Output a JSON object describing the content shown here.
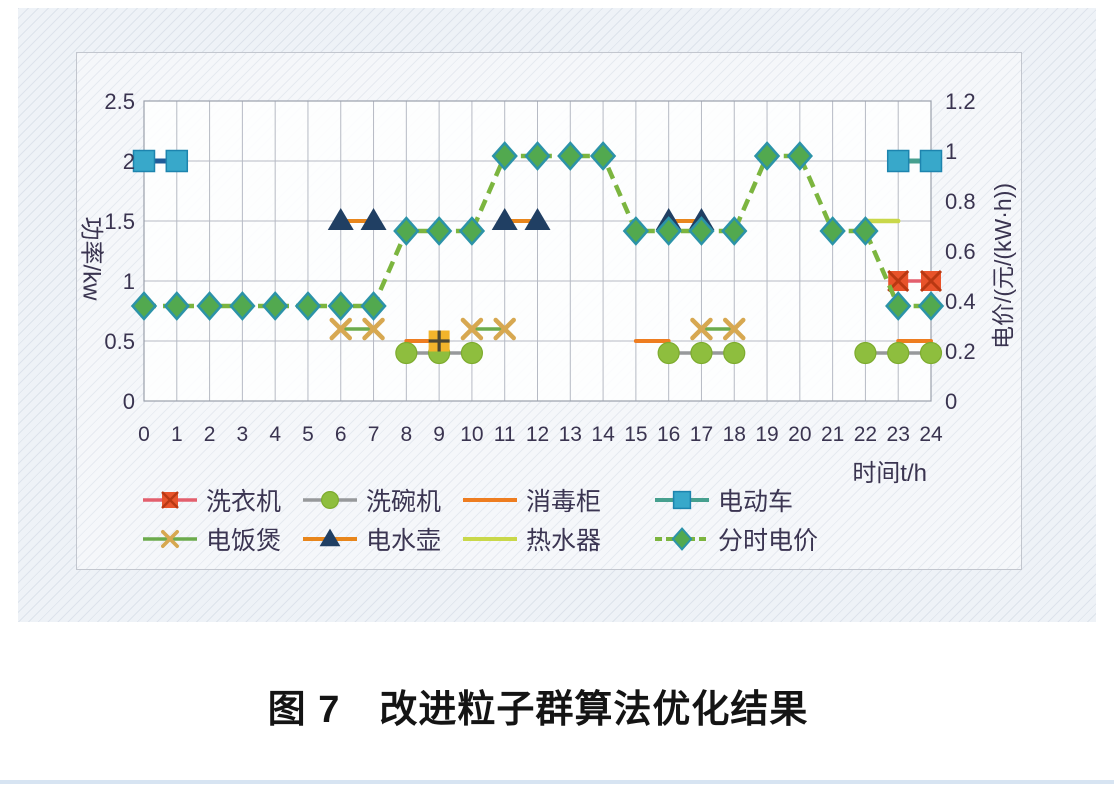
{
  "page": {
    "caption": "图 7　改进粒子群算法优化结果"
  },
  "chart_data": {
    "type": "line",
    "x_axis": {
      "title": "时间t/h",
      "range": [
        0,
        24
      ],
      "ticks": [
        "0",
        "1",
        "2",
        "3",
        "4",
        "5",
        "6",
        "7",
        "8",
        "9",
        "10",
        "11",
        "12",
        "13",
        "14",
        "15",
        "16",
        "17",
        "18",
        "19",
        "20",
        "21",
        "22",
        "23",
        "24"
      ]
    },
    "y_left_axis": {
      "title": "功率/kw",
      "range": [
        0,
        2.5
      ],
      "ticks": [
        "0",
        "0.5",
        "1",
        "1.5",
        "2",
        "2.5"
      ],
      "gridlines": true
    },
    "y_right_axis": {
      "title": "电价/(元/(kW·h))",
      "range": [
        0,
        1.2
      ],
      "ticks": [
        "0",
        "0.2",
        "0.4",
        "0.6",
        "0.8",
        "1",
        "1.2"
      ]
    },
    "series": [
      {
        "id": "sterilizer",
        "label": "消毒柜",
        "axis": "left",
        "marker": "none",
        "line_color": "#ee7d20",
        "line_width": 4,
        "segments": [
          {
            "points": [
              [
                8,
                0.5
              ],
              [
                9,
                0.5
              ]
            ]
          },
          {
            "points": [
              [
                15,
                0.5
              ],
              [
                16,
                0.5
              ]
            ]
          },
          {
            "points": [
              [
                23,
                0.5
              ],
              [
                24,
                0.5
              ]
            ]
          }
        ]
      },
      {
        "id": "water_heater",
        "label": "热水器",
        "axis": "left",
        "marker": "none",
        "line_color": "#c9d84a",
        "line_width": 4.5,
        "segments": [
          {
            "points": [
              [
                22,
                1.5
              ],
              [
                23,
                1.5
              ]
            ]
          }
        ]
      },
      {
        "id": "dishwasher",
        "label": "洗碗机",
        "axis": "left",
        "marker": "circle",
        "marker_fill": "#8ebe3e",
        "marker_stroke": "#7dab2e",
        "line_color": "#97999b",
        "line_width": 3.5,
        "segments": [
          {
            "points": [
              [
                8,
                0.4
              ],
              [
                9,
                0.4
              ],
              [
                10,
                0.4
              ]
            ]
          },
          {
            "points": [
              [
                16,
                0.4
              ],
              [
                17,
                0.4
              ],
              [
                18,
                0.4
              ]
            ]
          },
          {
            "points": [
              [
                22,
                0.4
              ],
              [
                23,
                0.4
              ],
              [
                24,
                0.4
              ]
            ]
          }
        ]
      },
      {
        "id": "rice_cooker",
        "label": "电饭煲",
        "axis": "left",
        "marker": "x",
        "marker_fill": "#d7a851",
        "marker_stroke": "#d7a851",
        "line_color": "#6cab4c",
        "line_width": 3.5,
        "segments": [
          {
            "points": [
              [
                6,
                0.6
              ],
              [
                7,
                0.6
              ]
            ]
          },
          {
            "points": [
              [
                10,
                0.6
              ],
              [
                11,
                0.6
              ]
            ]
          },
          {
            "points": [
              [
                17,
                0.6
              ],
              [
                18,
                0.6
              ]
            ]
          }
        ]
      },
      {
        "id": "kettle",
        "label": "电水壶",
        "axis": "left",
        "marker": "triangle",
        "marker_fill": "#203f63",
        "marker_stroke": "#1a3352",
        "line_color": "#e8861c",
        "line_width": 4,
        "segments": [
          {
            "points": [
              [
                6,
                1.5
              ],
              [
                7,
                1.5
              ]
            ]
          },
          {
            "points": [
              [
                11,
                1.5
              ],
              [
                12,
                1.5
              ]
            ]
          },
          {
            "points": [
              [
                16,
                1.5
              ],
              [
                17,
                1.5
              ]
            ]
          }
        ]
      },
      {
        "id": "ev",
        "label": "电动车",
        "axis": "left",
        "marker": "square",
        "marker_fill": "#38a8ca",
        "marker_stroke": "#1d84ae",
        "line_color": "#46a08f",
        "line_width": 5,
        "segments": [
          {
            "points": [
              [
                0,
                2
              ],
              [
                1,
                2
              ]
            ],
            "line_color": "#1f5c99"
          },
          {
            "points": [
              [
                23,
                2
              ],
              [
                24,
                2
              ]
            ]
          }
        ]
      },
      {
        "id": "washer",
        "label": "洗衣机",
        "axis": "left",
        "marker": "x-square",
        "marker_fill": "#e8532a",
        "marker_stroke": "#b83812",
        "line_color": "#e35f6d",
        "line_width": 3.5,
        "segments": [
          {
            "points": [
              [
                23,
                1
              ],
              [
                24,
                1
              ]
            ]
          }
        ]
      },
      {
        "id": "tou",
        "label": "分时电价",
        "axis": "right",
        "marker": "diamond",
        "marker_fill": "#52a94f",
        "marker_stroke": "#2c93a8",
        "line_color": "#7cb53f",
        "line_width": 4.5,
        "dashed": true,
        "dash": [
          12,
          7
        ],
        "x": [
          0,
          1,
          2,
          3,
          4,
          5,
          6,
          7,
          8,
          9,
          10,
          11,
          12,
          13,
          14,
          15,
          16,
          17,
          18,
          19,
          20,
          21,
          22,
          23,
          24
        ],
        "values": [
          0.38,
          0.38,
          0.38,
          0.38,
          0.38,
          0.38,
          0.38,
          0.38,
          0.68,
          0.68,
          0.68,
          0.98,
          0.98,
          0.98,
          0.98,
          0.68,
          0.68,
          0.68,
          0.68,
          0.98,
          0.98,
          0.68,
          0.68,
          0.38,
          0.38
        ]
      }
    ],
    "extra_markers": [
      {
        "x": 9,
        "y": 0.5,
        "axis": "left",
        "shape": "plus-square",
        "fill": "#f2b42b",
        "stroke": "#4c4733",
        "note": "gold square marker with cross at hour 9, 0.5 kW"
      }
    ],
    "legend": {
      "row1": [
        {
          "series": "washer",
          "label": "洗衣机"
        },
        {
          "series": "dishwasher",
          "label": "洗碗机"
        },
        {
          "series": "sterilizer",
          "label": "消毒柜"
        },
        {
          "series": "ev",
          "label": "电动车"
        }
      ],
      "row2": [
        {
          "series": "rice_cooker",
          "label": "电饭煲"
        },
        {
          "series": "kettle",
          "label": "电水壶"
        },
        {
          "series": "water_heater",
          "label": "热水器"
        },
        {
          "series": "tou",
          "label": "分时电价"
        }
      ]
    }
  }
}
